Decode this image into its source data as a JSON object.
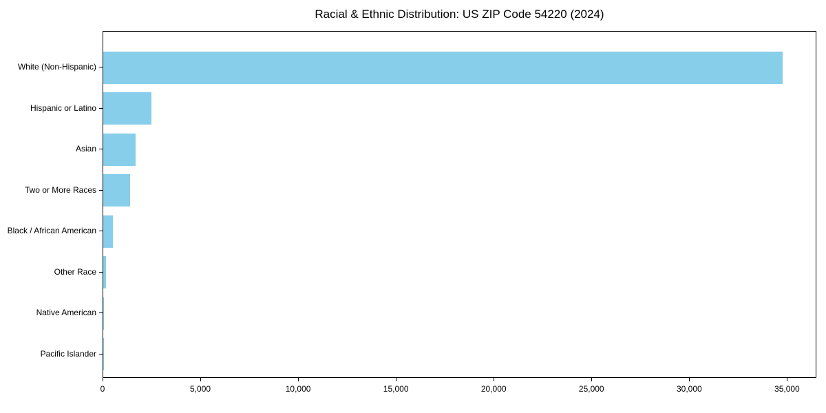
{
  "chart_data": {
    "type": "bar",
    "orientation": "horizontal",
    "title": "Racial & Ethnic Distribution: US ZIP Code 54220 (2024)",
    "xlabel": "",
    "ylabel": "",
    "categories": [
      "White (Non-Hispanic)",
      "Hispanic or Latino",
      "Asian",
      "Two or More Races",
      "Black / African American",
      "Other Race",
      "Native American",
      "Pacific Islander"
    ],
    "values": [
      34750,
      2460,
      1640,
      1380,
      490,
      140,
      25,
      10
    ],
    "xlim": [
      0,
      36500
    ],
    "x_ticks": [
      0,
      5000,
      10000,
      15000,
      20000,
      25000,
      30000,
      35000
    ],
    "x_tick_labels": [
      "0",
      "5,000",
      "10,000",
      "15,000",
      "20,000",
      "25,000",
      "30,000",
      "35,000"
    ],
    "bar_color": "#87CEEB",
    "axis_color": "#000000",
    "background_color": "#ffffff",
    "grid": false,
    "legend": null
  }
}
